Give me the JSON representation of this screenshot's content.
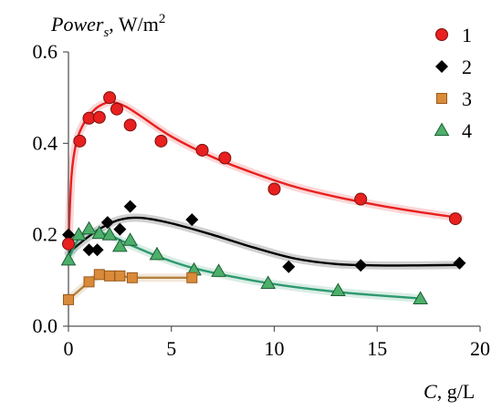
{
  "chart_data": {
    "type": "scatter",
    "ylabel": {
      "var": "Power",
      "sub": "s",
      "unit": ", W/m",
      "sup": "2"
    },
    "xlabel": {
      "var": "C",
      "unit": ", g/L"
    },
    "xlim": [
      0,
      20
    ],
    "ylim": [
      0,
      0.6
    ],
    "xticks": [
      0,
      5,
      10,
      15,
      20
    ],
    "xtick_labels": [
      "0",
      "5",
      "10",
      "15",
      "20"
    ],
    "yticks": [
      0,
      0.2,
      0.4,
      0.6
    ],
    "ytick_labels": [
      "0.0",
      "0.2",
      "0.4",
      "0.6"
    ],
    "grid": false,
    "legend_position": "top-right",
    "series": [
      {
        "name": "1",
        "marker": "circle",
        "color": "#e8201f",
        "line_color": "#e8201f",
        "points": [
          [
            0,
            0.18
          ],
          [
            0.55,
            0.405
          ],
          [
            1.0,
            0.455
          ],
          [
            1.5,
            0.457
          ],
          [
            2.0,
            0.5
          ],
          [
            2.35,
            0.475
          ],
          [
            3.0,
            0.44
          ],
          [
            4.5,
            0.405
          ],
          [
            6.5,
            0.385
          ],
          [
            7.6,
            0.368
          ],
          [
            10.0,
            0.3
          ],
          [
            14.2,
            0.278
          ],
          [
            18.8,
            0.235
          ]
        ],
        "fit": [
          [
            0,
            0.18
          ],
          [
            0.15,
            0.33
          ],
          [
            0.4,
            0.405
          ],
          [
            0.8,
            0.448
          ],
          [
            1.3,
            0.475
          ],
          [
            1.8,
            0.488
          ],
          [
            2.2,
            0.49
          ],
          [
            2.8,
            0.48
          ],
          [
            3.5,
            0.46
          ],
          [
            5.0,
            0.415
          ],
          [
            7.0,
            0.37
          ],
          [
            9.0,
            0.335
          ],
          [
            11.0,
            0.305
          ],
          [
            13.0,
            0.283
          ],
          [
            15.0,
            0.265
          ],
          [
            17.0,
            0.25
          ],
          [
            19.0,
            0.237
          ]
        ]
      },
      {
        "name": "2",
        "marker": "diamond",
        "color": "#000000",
        "line_color": "#000000",
        "points": [
          [
            0,
            0.2
          ],
          [
            1.0,
            0.167
          ],
          [
            1.4,
            0.167
          ],
          [
            1.9,
            0.227
          ],
          [
            2.5,
            0.212
          ],
          [
            3.0,
            0.262
          ],
          [
            6.0,
            0.233
          ],
          [
            10.7,
            0.13
          ],
          [
            14.2,
            0.133
          ],
          [
            19.0,
            0.138
          ]
        ],
        "fit": [
          [
            0,
            0.16
          ],
          [
            0.8,
            0.19
          ],
          [
            1.6,
            0.215
          ],
          [
            2.5,
            0.233
          ],
          [
            3.5,
            0.237
          ],
          [
            5.0,
            0.225
          ],
          [
            7.0,
            0.2
          ],
          [
            9.0,
            0.172
          ],
          [
            11.0,
            0.148
          ],
          [
            13.0,
            0.136
          ],
          [
            15.0,
            0.133
          ],
          [
            17.0,
            0.133
          ],
          [
            19.0,
            0.134
          ]
        ]
      },
      {
        "name": "3",
        "marker": "square",
        "color": "#d98b3a",
        "line_color": "#b5813d",
        "points": [
          [
            0,
            0.058
          ],
          [
            1.0,
            0.097
          ],
          [
            1.5,
            0.113
          ],
          [
            2.0,
            0.11
          ],
          [
            2.5,
            0.11
          ],
          [
            3.1,
            0.106
          ],
          [
            6.0,
            0.106
          ]
        ],
        "fit": [
          [
            0,
            0.058
          ],
          [
            1.0,
            0.097
          ],
          [
            1.5,
            0.113
          ],
          [
            2.0,
            0.11
          ],
          [
            2.5,
            0.11
          ],
          [
            3.1,
            0.106
          ],
          [
            6.0,
            0.106
          ]
        ]
      },
      {
        "name": "4",
        "marker": "triangle",
        "color": "#4caf6a",
        "line_color": "#2e9a6f",
        "points": [
          [
            0,
            0.145
          ],
          [
            0.5,
            0.2
          ],
          [
            1.0,
            0.213
          ],
          [
            1.5,
            0.203
          ],
          [
            2.0,
            0.2
          ],
          [
            2.5,
            0.175
          ],
          [
            3.0,
            0.188
          ],
          [
            4.3,
            0.157
          ],
          [
            6.1,
            0.123
          ],
          [
            7.3,
            0.12
          ],
          [
            9.7,
            0.094
          ],
          [
            13.1,
            0.078
          ],
          [
            17.1,
            0.06
          ]
        ],
        "fit": [
          [
            0,
            0.145
          ],
          [
            0.4,
            0.185
          ],
          [
            0.9,
            0.205
          ],
          [
            1.5,
            0.205
          ],
          [
            2.2,
            0.195
          ],
          [
            3.0,
            0.178
          ],
          [
            4.5,
            0.15
          ],
          [
            6.0,
            0.128
          ],
          [
            8.0,
            0.108
          ],
          [
            10.0,
            0.092
          ],
          [
            12.0,
            0.08
          ],
          [
            14.0,
            0.071
          ],
          [
            17.0,
            0.061
          ]
        ]
      }
    ]
  }
}
